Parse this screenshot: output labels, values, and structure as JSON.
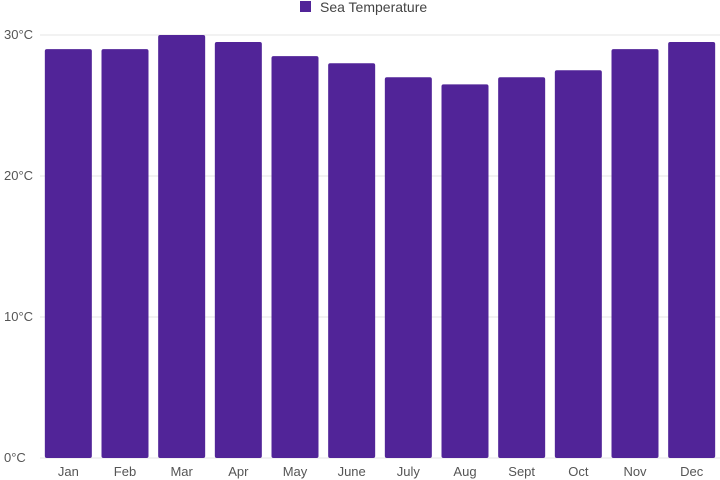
{
  "chart_data": {
    "type": "bar",
    "legend": {
      "position": "top-center",
      "entries": [
        "Sea Temperature"
      ]
    },
    "series": [
      {
        "name": "Sea Temperature",
        "color": "#512498",
        "values": [
          29,
          29,
          30,
          29.5,
          28.5,
          28,
          27,
          26.5,
          27,
          27.5,
          29,
          29.5
        ]
      }
    ],
    "categories": [
      "Jan",
      "Feb",
      "Mar",
      "Apr",
      "May",
      "June",
      "July",
      "Aug",
      "Sept",
      "Oct",
      "Nov",
      "Dec"
    ],
    "yaxis": {
      "ylim": [
        0,
        30
      ],
      "ticks": [
        0,
        10,
        20,
        30
      ],
      "tick_labels": [
        "0°C",
        "10°C",
        "20°C",
        "30°C"
      ]
    },
    "grid": true,
    "title": "",
    "xlabel": "",
    "ylabel": ""
  }
}
